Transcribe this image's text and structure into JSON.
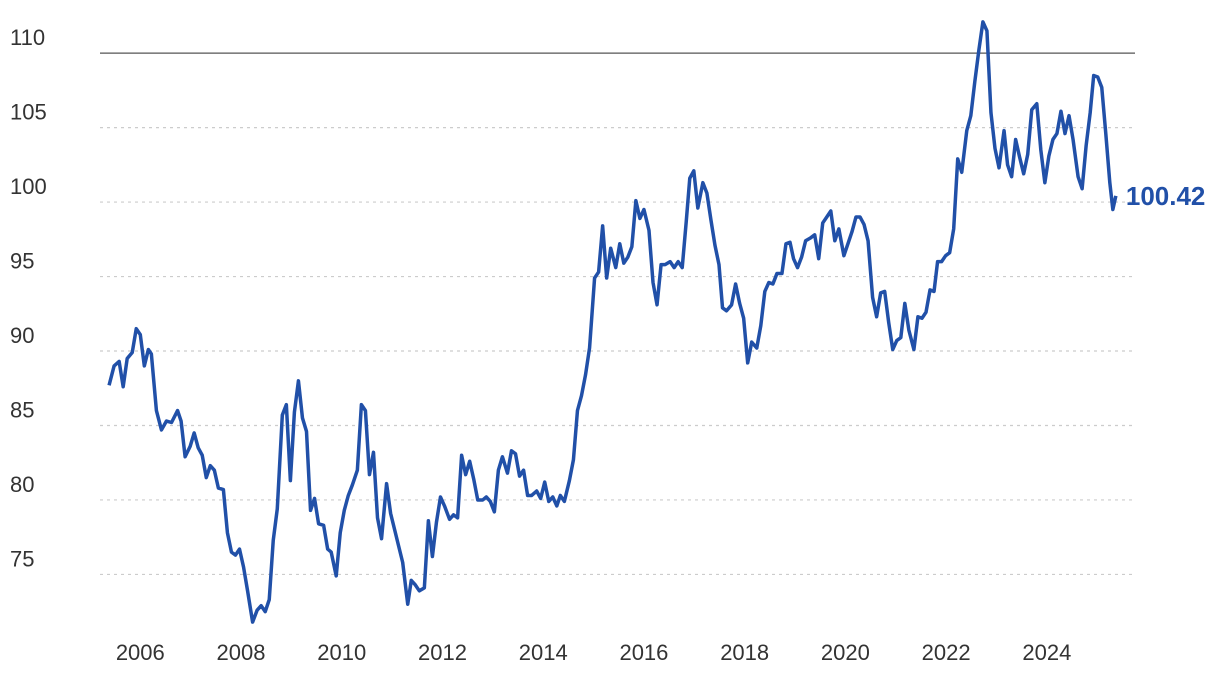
{
  "chart_data": {
    "type": "line",
    "x": [
      2005.38,
      2005.48,
      2005.58,
      2005.66,
      2005.74,
      2005.84,
      2005.92,
      2006.0,
      2006.08,
      2006.16,
      2006.22,
      2006.32,
      2006.42,
      2006.52,
      2006.62,
      2006.74,
      2006.81,
      2006.89,
      2006.99,
      2007.07,
      2007.15,
      2007.23,
      2007.31,
      2007.39,
      2007.47,
      2007.55,
      2007.65,
      2007.73,
      2007.81,
      2007.89,
      2007.97,
      2008.05,
      2008.13,
      2008.23,
      2008.32,
      2008.4,
      2008.48,
      2008.56,
      2008.64,
      2008.72,
      2008.82,
      2008.9,
      2008.98,
      2009.06,
      2009.14,
      2009.22,
      2009.3,
      2009.38,
      2009.46,
      2009.54,
      2009.64,
      2009.72,
      2009.79,
      2009.89,
      2009.97,
      2010.05,
      2010.13,
      2010.21,
      2010.31,
      2010.39,
      2010.47,
      2010.55,
      2010.63,
      2010.71,
      2010.79,
      2010.89,
      2010.97,
      2011.05,
      2011.13,
      2011.21,
      2011.31,
      2011.38,
      2011.46,
      2011.54,
      2011.64,
      2011.72,
      2011.8,
      2011.88,
      2011.96,
      2012.04,
      2012.14,
      2012.22,
      2012.3,
      2012.38,
      2012.46,
      2012.54,
      2012.62,
      2012.7,
      2012.8,
      2012.87,
      2012.95,
      2013.03,
      2013.11,
      2013.19,
      2013.29,
      2013.37,
      2013.45,
      2013.53,
      2013.61,
      2013.69,
      2013.77,
      2013.87,
      2013.95,
      2014.03,
      2014.11,
      2014.19,
      2014.27,
      2014.34,
      2014.42,
      2014.52,
      2014.6,
      2014.68,
      2014.76,
      2014.84,
      2014.92,
      2015.02,
      2015.1,
      2015.18,
      2015.26,
      2015.34,
      2015.44,
      2015.52,
      2015.6,
      2015.68,
      2015.76,
      2015.84,
      2015.92,
      2016.0,
      2016.1,
      2016.18,
      2016.26,
      2016.34,
      2016.42,
      2016.52,
      2016.6,
      2016.68,
      2016.76,
      2016.84,
      2016.91,
      2016.99,
      2017.07,
      2017.17,
      2017.25,
      2017.33,
      2017.41,
      2017.49,
      2017.56,
      2017.64,
      2017.74,
      2017.82,
      2017.9,
      2017.98,
      2018.06,
      2018.14,
      2018.24,
      2018.32,
      2018.4,
      2018.48,
      2018.56,
      2018.64,
      2018.74,
      2018.82,
      2018.9,
      2018.97,
      2019.05,
      2019.13,
      2019.21,
      2019.31,
      2019.39,
      2019.47,
      2019.55,
      2019.63,
      2019.71,
      2019.79,
      2019.87,
      2019.97,
      2020.05,
      2020.13,
      2020.21,
      2020.29,
      2020.37,
      2020.45,
      2020.54,
      2020.62,
      2020.7,
      2020.78,
      2020.86,
      2020.94,
      2021.02,
      2021.1,
      2021.18,
      2021.26,
      2021.36,
      2021.44,
      2021.52,
      2021.6,
      2021.68,
      2021.76,
      2021.83,
      2021.91,
      2021.99,
      2022.07,
      2022.15,
      2022.23,
      2022.31,
      2022.41,
      2022.49,
      2022.57,
      2022.65,
      2022.73,
      2022.81,
      2022.89,
      2022.97,
      2023.05,
      2023.15,
      2023.22,
      2023.3,
      2023.38,
      2023.46,
      2023.54,
      2023.62,
      2023.7,
      2023.8,
      2023.88,
      2023.96,
      2024.04,
      2024.12,
      2024.2,
      2024.28,
      2024.36,
      2024.44,
      2024.52,
      2024.62,
      2024.7,
      2024.78,
      2024.86,
      2024.93,
      2025.01,
      2025.09,
      2025.17,
      2025.25,
      2025.31,
      2025.37
    ],
    "series": [
      {
        "color": "#2150a8",
        "values": [
          87.7,
          89.0,
          89.3,
          87.6,
          89.5,
          89.9,
          91.5,
          91.1,
          89.0,
          90.1,
          89.8,
          86.0,
          84.7,
          85.3,
          85.2,
          86.0,
          85.3,
          82.9,
          83.6,
          84.5,
          83.5,
          83.0,
          81.5,
          82.3,
          82.0,
          80.8,
          80.7,
          77.8,
          76.5,
          76.3,
          76.7,
          75.5,
          73.9,
          71.8,
          72.6,
          72.9,
          72.5,
          73.3,
          77.3,
          79.4,
          85.7,
          86.4,
          81.3,
          85.9,
          88.0,
          85.5,
          84.6,
          79.3,
          80.1,
          78.4,
          78.3,
          76.7,
          76.5,
          74.9,
          77.8,
          79.3,
          80.3,
          81.0,
          82.0,
          86.4,
          86.0,
          81.7,
          83.2,
          78.8,
          77.4,
          81.1,
          79.1,
          78.0,
          76.9,
          75.8,
          73.0,
          74.6,
          74.3,
          73.9,
          74.1,
          78.6,
          76.2,
          78.5,
          80.2,
          79.6,
          78.7,
          79.0,
          78.8,
          83.0,
          81.7,
          82.6,
          81.4,
          80.0,
          80.0,
          80.2,
          79.9,
          79.2,
          82.0,
          82.9,
          81.8,
          83.3,
          83.1,
          81.6,
          82.0,
          80.3,
          80.3,
          80.6,
          80.1,
          81.2,
          79.9,
          80.2,
          79.6,
          80.3,
          79.9,
          81.3,
          82.7,
          86.0,
          87.0,
          88.4,
          90.2,
          94.9,
          95.3,
          98.4,
          94.9,
          96.9,
          95.6,
          97.2,
          95.9,
          96.3,
          97.0,
          100.1,
          98.9,
          99.5,
          98.1,
          94.6,
          93.1,
          95.8,
          95.8,
          96.0,
          95.6,
          96.0,
          95.6,
          98.7,
          101.6,
          102.1,
          99.6,
          101.3,
          100.6,
          98.8,
          97.1,
          95.8,
          92.9,
          92.7,
          93.1,
          94.5,
          93.2,
          92.2,
          89.2,
          90.6,
          90.2,
          91.7,
          94.0,
          94.6,
          94.5,
          95.2,
          95.2,
          97.2,
          97.3,
          96.2,
          95.6,
          96.3,
          97.4,
          97.6,
          97.8,
          96.2,
          98.6,
          99.0,
          99.4,
          97.4,
          98.2,
          96.4,
          97.2,
          98.0,
          99.0,
          99.0,
          98.5,
          97.4,
          93.6,
          92.3,
          93.9,
          94.0,
          91.9,
          90.1,
          90.7,
          90.9,
          93.2,
          91.4,
          90.1,
          92.3,
          92.2,
          92.6,
          94.1,
          94.0,
          96.0,
          96.0,
          96.4,
          96.6,
          98.2,
          102.9,
          102.0,
          104.8,
          105.8,
          108.1,
          110.2,
          112.1,
          111.5,
          106.0,
          103.6,
          102.3,
          104.8,
          102.5,
          101.7,
          104.2,
          103.0,
          101.9,
          103.2,
          106.2,
          106.6,
          103.5,
          101.3,
          103.1,
          104.2,
          104.6,
          106.1,
          104.6,
          105.8,
          104.2,
          101.7,
          100.9,
          103.8,
          106.0,
          108.5,
          108.4,
          107.7,
          104.6,
          101.3,
          99.5,
          100.42
        ]
      }
    ],
    "xlim": [
      2005.2,
      2025.75
    ],
    "xticks": [
      2006,
      2008,
      2010,
      2012,
      2014,
      2016,
      2018,
      2020,
      2022,
      2024
    ],
    "ylim": [
      71,
      113.5
    ],
    "yticks": [
      75,
      80,
      85,
      90,
      95,
      100,
      105,
      110
    ],
    "grid": true
  }
}
